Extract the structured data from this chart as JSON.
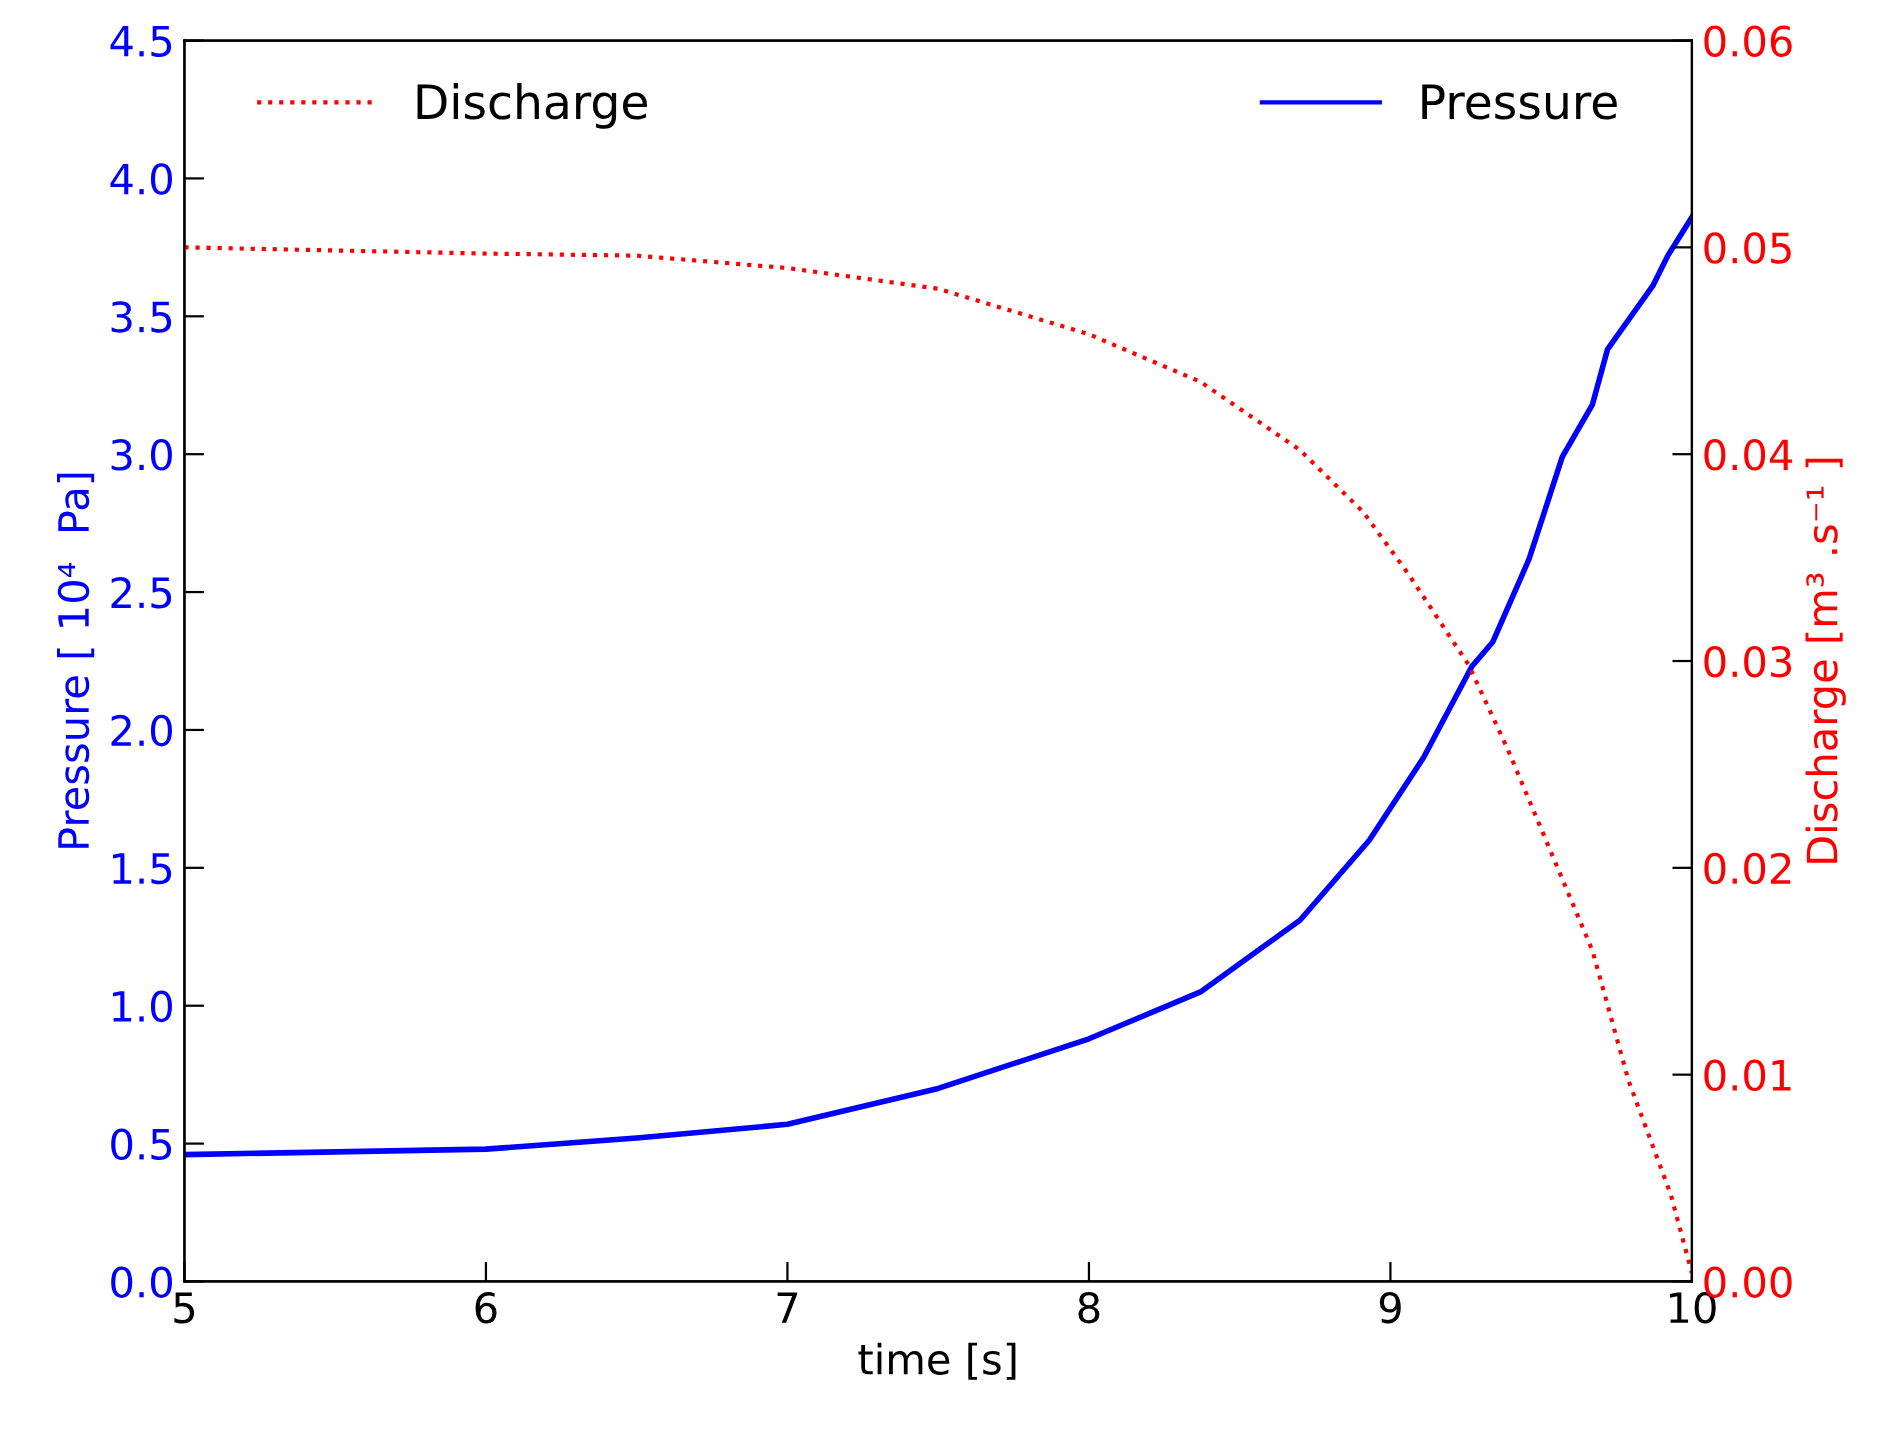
{
  "chart_data": {
    "type": "line",
    "xlabel": "time [s]",
    "ylabel": "Pressure [ 10⁴  Pa]",
    "y2label": "Discharge [m³ .s⁻¹ ]",
    "legend": "top",
    "xlim": [
      5,
      10
    ],
    "xticks": [
      5,
      6,
      7,
      8,
      9,
      10
    ],
    "ylim": [
      0,
      4.5
    ],
    "yticks": [
      {
        "value": 0,
        "label": "0.0"
      },
      0.5,
      {
        "value": 1,
        "label": "1.0"
      },
      1.5,
      {
        "value": 2,
        "label": "2.0"
      },
      2.5,
      {
        "value": 3,
        "label": "3.0"
      },
      3.5,
      {
        "value": 4,
        "label": "4.0"
      },
      4.5
    ],
    "y2lim": [
      0,
      0.06
    ],
    "y2ticks": [
      {
        "value": 0,
        "label": "0.00"
      },
      0.01,
      0.02,
      0.03,
      0.04,
      0.05,
      0.06
    ],
    "grid": false,
    "series": [
      {
        "name": "Pressure",
        "color": "#0000ff",
        "line_style": "solid",
        "x": [
          5,
          6,
          6.5,
          7,
          7.5,
          8,
          8.37,
          8.7,
          8.93,
          9.11,
          9.27,
          9.34,
          9.46,
          9.57,
          9.67,
          9.72,
          9.87,
          9.92,
          10
        ],
        "values": [
          0.46,
          0.48,
          0.52,
          0.57,
          0.7,
          0.88,
          1.05,
          1.31,
          1.6,
          1.9,
          2.23,
          2.32,
          2.62,
          2.99,
          3.18,
          3.38,
          3.61,
          3.72,
          3.86
        ]
      },
      {
        "name": "Discharge",
        "color": "#ff0000",
        "line_style": "dotted",
        "axis": "y2",
        "x": [
          5,
          6,
          6.5,
          7,
          7.5,
          8,
          8.37,
          8.7,
          8.91,
          9.06,
          9.26,
          9.39,
          9.54,
          9.67,
          9.79,
          9.93,
          10
        ],
        "values": [
          0.05,
          0.0497,
          0.0496,
          0.049,
          0.048,
          0.0458,
          0.0435,
          0.0402,
          0.0372,
          0.0342,
          0.0298,
          0.0257,
          0.0205,
          0.016,
          0.0097,
          0.0042,
          0.0004
        ]
      }
    ]
  }
}
